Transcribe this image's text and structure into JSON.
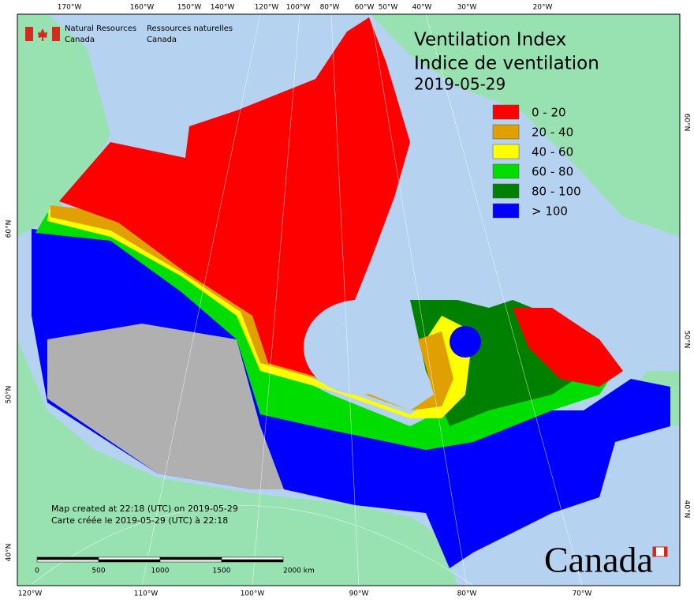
{
  "header": {
    "org_en_1": "Natural Resources",
    "org_en_2": "Canada",
    "org_fr_1": "Ressources naturelles",
    "org_fr_2": "Canada"
  },
  "title": {
    "line1": "Ventilation Index",
    "line2": "Indice de ventilation",
    "date": "2019-05-29"
  },
  "legend": [
    {
      "label": "0 - 20",
      "color": "#ff0000"
    },
    {
      "label": "20 - 40",
      "color": "#e0a000"
    },
    {
      "label": "40 - 60",
      "color": "#ffff00"
    },
    {
      "label": "60 - 80",
      "color": "#00dd00"
    },
    {
      "label": "80 - 100",
      "color": "#008000"
    },
    {
      "label": "> 100",
      "color": "#0000ff"
    }
  ],
  "graticule": {
    "top": [
      "170°W",
      "160°W",
      "150°W",
      "140°W",
      "120°W",
      "100°W",
      "80°W",
      "60°W",
      "50°W",
      "40°W",
      "30°W",
      "20°W"
    ],
    "bottom": [
      "120°W",
      "110°W",
      "100°W",
      "90°W",
      "80°W",
      "70°W"
    ],
    "left": [
      "60°N",
      "50°N",
      "40°N"
    ],
    "right": [
      "60°N",
      "50°N",
      "40°N"
    ]
  },
  "footer": {
    "line1": "Map created at 22:18 (UTC) on 2019-05-29",
    "line2": "Carte créée le 2019-05-29 (UTC) à 22:18"
  },
  "scale_bar": {
    "labels": [
      "0",
      "500",
      "1000",
      "1500",
      "2000 km"
    ]
  },
  "wordmark": "Canada"
}
